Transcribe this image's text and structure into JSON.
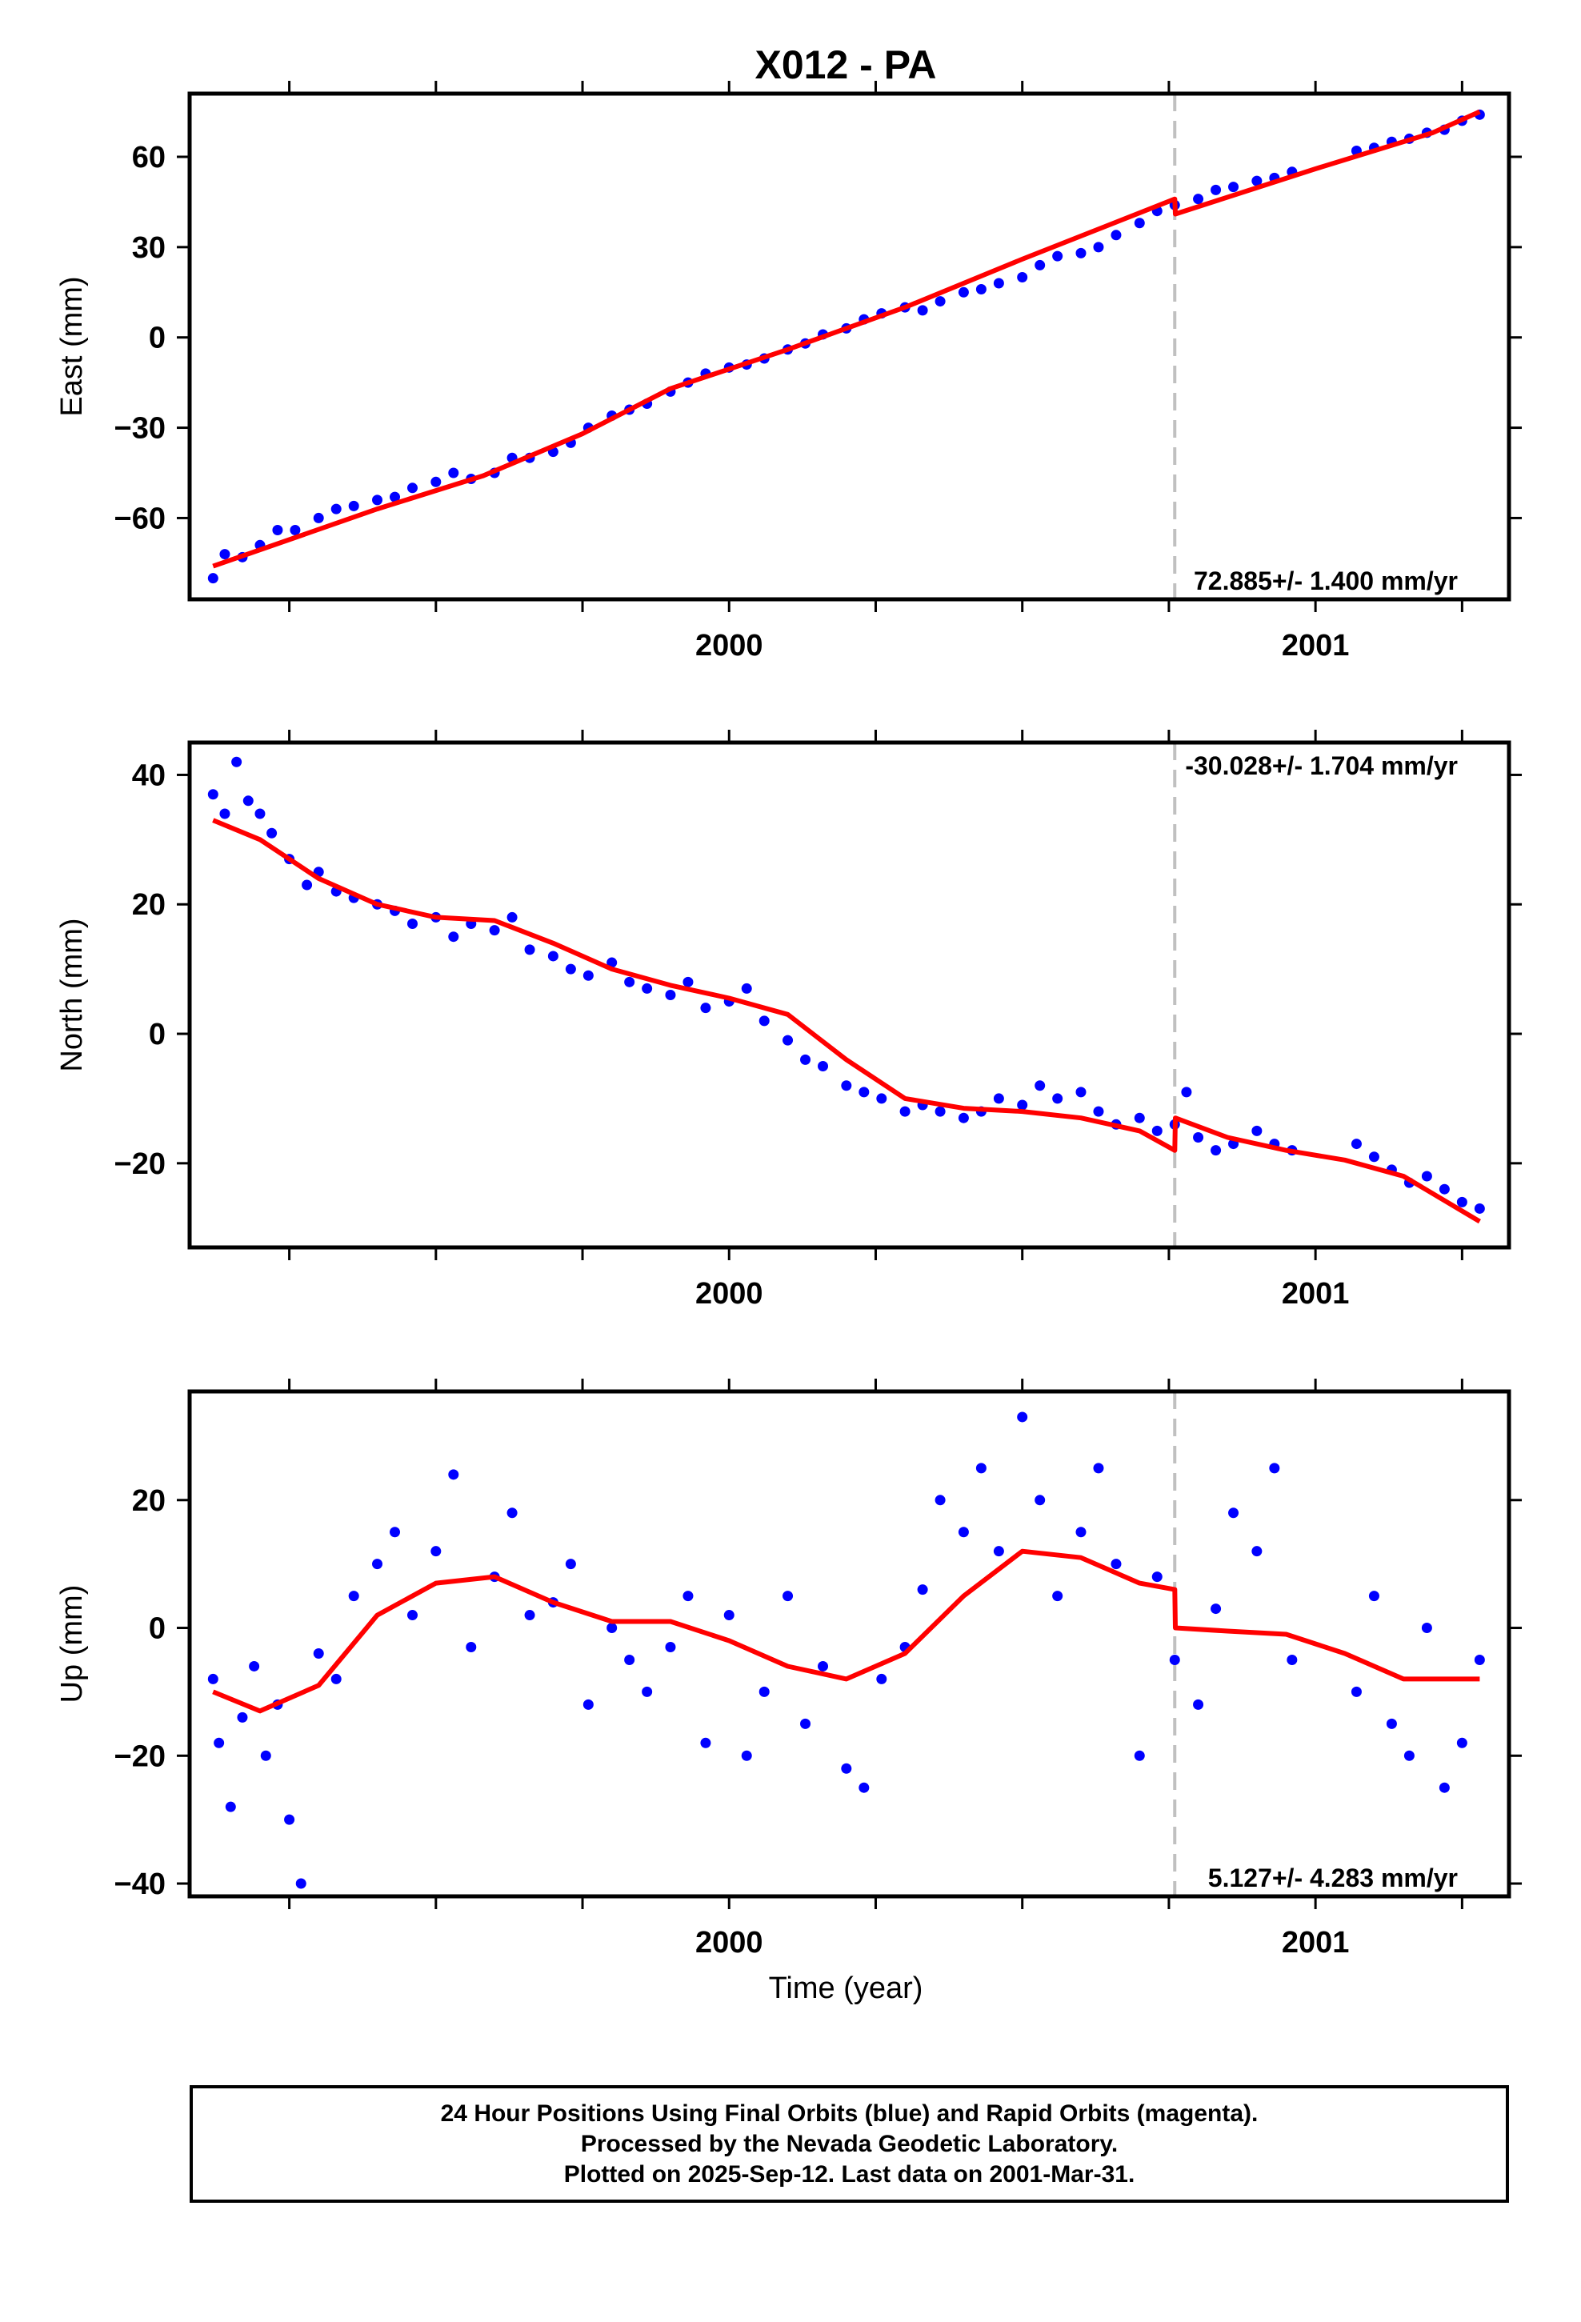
{
  "chart_data": {
    "type": "scatter",
    "title": "X012 - PA",
    "xlabel": "Time (year)",
    "xlim": [
      1999.08,
      2001.33
    ],
    "x_major_ticks": [
      2000,
      2001
    ],
    "x_minor_ticks": [
      1999.25,
      1999.5,
      1999.75,
      2000.25,
      2000.5,
      2000.75,
      2001.25
    ],
    "break_epoch": 2000.76,
    "point_color": "#0000ff",
    "fit_color": "#ff0000",
    "break_line_color": "#c0c0c0",
    "panels": [
      {
        "name": "east",
        "ylabel": "East (mm)",
        "ylim": [
          -87,
          81
        ],
        "yticks": [
          -60,
          -30,
          0,
          30,
          60
        ],
        "ytick_labels": [
          "−60",
          "−30",
          "0",
          "30",
          "60"
        ],
        "rate_label": "72.885+/- 1.400 mm/yr",
        "rate_position": "bottom-right",
        "fit_x": [
          1999.12,
          1999.4,
          1999.58,
          1999.75,
          1999.9,
          2000.1,
          2000.3,
          2000.5,
          2000.76,
          2000.761,
          2001.0,
          2001.2,
          2001.28
        ],
        "fit_y": [
          -76,
          -57,
          -46,
          -32,
          -17,
          -4,
          10,
          26,
          46,
          41,
          56,
          68,
          75
        ],
        "scatter_x": [
          1999.12,
          1999.14,
          1999.17,
          1999.2,
          1999.23,
          1999.26,
          1999.3,
          1999.33,
          1999.36,
          1999.4,
          1999.43,
          1999.46,
          1999.5,
          1999.53,
          1999.56,
          1999.6,
          1999.63,
          1999.66,
          1999.7,
          1999.73,
          1999.76,
          1999.8,
          1999.83,
          1999.86,
          1999.9,
          1999.93,
          1999.96,
          2000.0,
          2000.03,
          2000.06,
          2000.1,
          2000.13,
          2000.16,
          2000.2,
          2000.23,
          2000.26,
          2000.3,
          2000.33,
          2000.36,
          2000.4,
          2000.43,
          2000.46,
          2000.5,
          2000.53,
          2000.56,
          2000.6,
          2000.63,
          2000.66,
          2000.7,
          2000.73,
          2000.76,
          2000.8,
          2000.83,
          2000.86,
          2000.9,
          2000.93,
          2000.96,
          2001.07,
          2001.1,
          2001.13,
          2001.16,
          2001.19,
          2001.22,
          2001.25,
          2001.28
        ],
        "scatter_y": [
          -80,
          -72,
          -73,
          -69,
          -64,
          -64,
          -60,
          -57,
          -56,
          -54,
          -53,
          -50,
          -48,
          -45,
          -47,
          -45,
          -40,
          -40,
          -38,
          -35,
          -30,
          -26,
          -24,
          -22,
          -18,
          -15,
          -12,
          -10,
          -9,
          -7,
          -4,
          -2,
          1,
          3,
          6,
          8,
          10,
          9,
          12,
          15,
          16,
          18,
          20,
          24,
          27,
          28,
          30,
          34,
          38,
          42,
          44,
          46,
          49,
          50,
          52,
          53,
          55,
          62,
          63,
          65,
          66,
          68,
          69,
          72,
          74
        ]
      },
      {
        "name": "north",
        "ylabel": "North (mm)",
        "ylim": [
          -33,
          45
        ],
        "yticks": [
          -20,
          0,
          20,
          40
        ],
        "ytick_labels": [
          "−20",
          "0",
          "20",
          "40"
        ],
        "rate_label": "-30.028+/- 1.704 mm/yr",
        "rate_position": "top-right",
        "fit_x": [
          1999.12,
          1999.2,
          1999.3,
          1999.4,
          1999.5,
          1999.6,
          1999.7,
          1999.8,
          1999.9,
          2000.0,
          2000.1,
          2000.2,
          2000.3,
          2000.4,
          2000.5,
          2000.6,
          2000.7,
          2000.76,
          2000.761,
          2000.85,
          2000.95,
          2001.05,
          2001.15,
          2001.28
        ],
        "fit_y": [
          33,
          30,
          24,
          20,
          18,
          17.5,
          14,
          10,
          7.5,
          5.5,
          3,
          -4,
          -10,
          -11.5,
          -12,
          -13,
          -15,
          -18,
          -13,
          -16,
          -18,
          -19.5,
          -22,
          -29
        ],
        "scatter_x": [
          1999.12,
          1999.14,
          1999.16,
          1999.18,
          1999.2,
          1999.22,
          1999.25,
          1999.28,
          1999.3,
          1999.33,
          1999.36,
          1999.4,
          1999.43,
          1999.46,
          1999.5,
          1999.53,
          1999.56,
          1999.6,
          1999.63,
          1999.66,
          1999.7,
          1999.73,
          1999.76,
          1999.8,
          1999.83,
          1999.86,
          1999.9,
          1999.93,
          1999.96,
          2000.0,
          2000.03,
          2000.06,
          2000.1,
          2000.13,
          2000.16,
          2000.2,
          2000.23,
          2000.26,
          2000.3,
          2000.33,
          2000.36,
          2000.4,
          2000.43,
          2000.46,
          2000.5,
          2000.53,
          2000.56,
          2000.6,
          2000.63,
          2000.66,
          2000.7,
          2000.73,
          2000.76,
          2000.78,
          2000.8,
          2000.83,
          2000.86,
          2000.9,
          2000.93,
          2000.96,
          2001.07,
          2001.1,
          2001.13,
          2001.16,
          2001.19,
          2001.22,
          2001.25,
          2001.28
        ],
        "scatter_y": [
          37,
          34,
          42,
          36,
          34,
          31,
          27,
          23,
          25,
          22,
          21,
          20,
          19,
          17,
          18,
          15,
          17,
          16,
          18,
          13,
          12,
          10,
          9,
          11,
          8,
          7,
          6,
          8,
          4,
          5,
          7,
          2,
          -1,
          -4,
          -5,
          -8,
          -9,
          -10,
          -12,
          -11,
          -12,
          -13,
          -12,
          -10,
          -11,
          -8,
          -10,
          -9,
          -12,
          -14,
          -13,
          -15,
          -14,
          -9,
          -16,
          -18,
          -17,
          -15,
          -17,
          -18,
          -17,
          -19,
          -21,
          -23,
          -22,
          -24,
          -26,
          -27
        ]
      },
      {
        "name": "up",
        "ylabel": "Up (mm)",
        "ylim": [
          -42,
          37
        ],
        "yticks": [
          -40,
          -20,
          0,
          20
        ],
        "ytick_labels": [
          "−40",
          "−20",
          "0",
          "20"
        ],
        "rate_label": "5.127+/- 4.283 mm/yr",
        "rate_position": "bottom-right",
        "fit_x": [
          1999.12,
          1999.2,
          1999.3,
          1999.4,
          1999.5,
          1999.6,
          1999.7,
          1999.8,
          1999.9,
          2000.0,
          2000.1,
          2000.2,
          2000.3,
          2000.4,
          2000.5,
          2000.6,
          2000.7,
          2000.76,
          2000.761,
          2000.85,
          2000.95,
          2001.05,
          2001.15,
          2001.28
        ],
        "fit_y": [
          -10,
          -13,
          -9,
          2,
          7,
          8,
          4,
          1,
          1,
          -2,
          -6,
          -8,
          -4,
          5,
          12,
          11,
          7,
          6,
          0,
          -0.5,
          -1,
          -4,
          -8,
          -8
        ],
        "scatter_x": [
          1999.12,
          1999.13,
          1999.15,
          1999.17,
          1999.19,
          1999.21,
          1999.23,
          1999.25,
          1999.27,
          1999.3,
          1999.33,
          1999.36,
          1999.4,
          1999.43,
          1999.46,
          1999.5,
          1999.53,
          1999.56,
          1999.6,
          1999.63,
          1999.66,
          1999.7,
          1999.73,
          1999.76,
          1999.8,
          1999.83,
          1999.86,
          1999.9,
          1999.93,
          1999.96,
          2000.0,
          2000.03,
          2000.06,
          2000.1,
          2000.13,
          2000.16,
          2000.2,
          2000.23,
          2000.26,
          2000.3,
          2000.33,
          2000.36,
          2000.4,
          2000.43,
          2000.46,
          2000.5,
          2000.53,
          2000.56,
          2000.6,
          2000.63,
          2000.66,
          2000.7,
          2000.73,
          2000.76,
          2000.8,
          2000.83,
          2000.86,
          2000.9,
          2000.93,
          2000.96,
          2001.07,
          2001.1,
          2001.13,
          2001.16,
          2001.19,
          2001.22,
          2001.25,
          2001.28
        ],
        "scatter_y": [
          -8,
          -18,
          -28,
          -14,
          -6,
          -20,
          -12,
          -30,
          -40,
          -4,
          -8,
          5,
          10,
          15,
          2,
          12,
          24,
          -3,
          8,
          18,
          2,
          4,
          10,
          -12,
          0,
          -5,
          -10,
          -3,
          5,
          -18,
          2,
          -20,
          -10,
          5,
          -15,
          -6,
          -22,
          -25,
          -8,
          -3,
          6,
          20,
          15,
          25,
          12,
          33,
          20,
          5,
          15,
          25,
          10,
          -20,
          8,
          -5,
          -12,
          3,
          18,
          12,
          25,
          -5,
          -10,
          5,
          -15,
          -20,
          0,
          -25,
          -18,
          -5
        ]
      }
    ]
  },
  "footer": {
    "line1": "24 Hour Positions Using Final Orbits (blue) and Rapid Orbits (magenta).",
    "line2": "Processed by the Nevada Geodetic Laboratory.",
    "line3": "Plotted on 2025-Sep-12. Last data on 2001-Mar-31."
  }
}
